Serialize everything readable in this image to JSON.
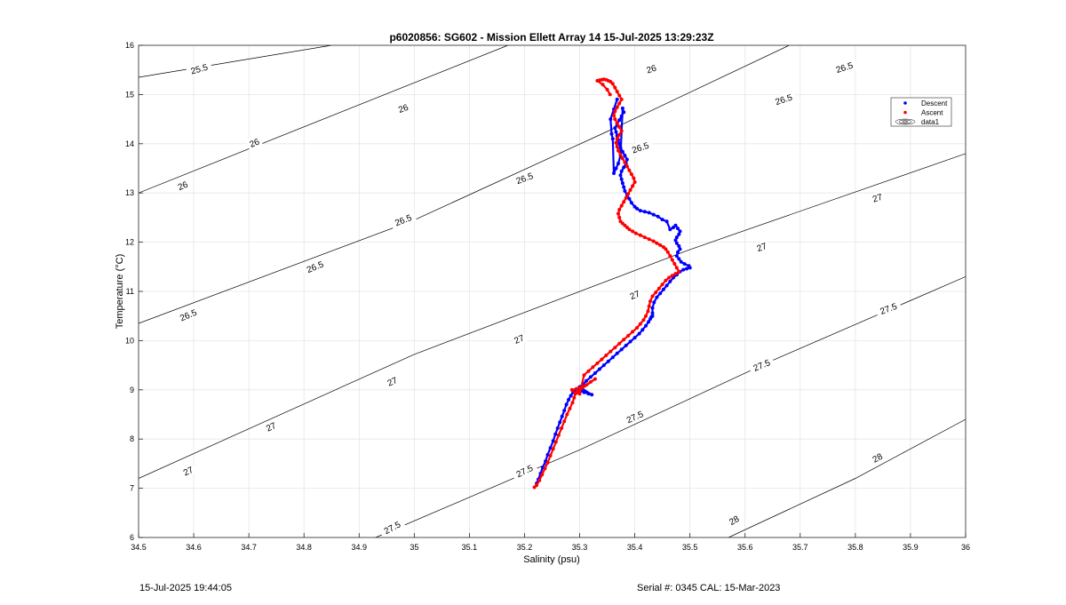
{
  "chart_data": {
    "type": "scatter",
    "title": "p6020856: SG602 - Mission Ellett Array 14 15-Jul-2025 13:29:23Z",
    "xlabel": "Salinity (psu)",
    "ylabel": "Temperature (°C)",
    "xlim": [
      34.5,
      36
    ],
    "ylim": [
      6,
      16
    ],
    "xticks": [
      "34.5",
      "34.6",
      "34.7",
      "34.8",
      "34.9",
      "35",
      "35.1",
      "35.2",
      "35.3",
      "35.4",
      "35.5",
      "35.6",
      "35.7",
      "35.8",
      "35.9",
      "36"
    ],
    "yticks": [
      "6",
      "7",
      "8",
      "9",
      "10",
      "11",
      "12",
      "13",
      "14",
      "15",
      "16"
    ],
    "grid": true,
    "legend_position": "top-right",
    "legend": [
      {
        "name": "Descent",
        "color": "#0000ff",
        "marker": "dot"
      },
      {
        "name": "Ascent",
        "color": "#ff0000",
        "marker": "dot"
      },
      {
        "name": "data1",
        "color": "#000000",
        "marker": "contour"
      }
    ],
    "series": [
      {
        "name": "Descent",
        "color": "#0000ff",
        "x": [
          35.222,
          35.225,
          35.229,
          35.233,
          35.238,
          35.242,
          35.247,
          35.252,
          35.256,
          35.26,
          35.264,
          35.268,
          35.272,
          35.276,
          35.28,
          35.284,
          35.288,
          35.292,
          35.296,
          35.3,
          35.303,
          35.308,
          35.316,
          35.322,
          35.3,
          35.306,
          35.312,
          35.32,
          35.328,
          35.336,
          35.344,
          35.352,
          35.36,
          35.368,
          35.376,
          35.384,
          35.392,
          35.4,
          35.408,
          35.414,
          35.42,
          35.425,
          35.428,
          35.43,
          35.432,
          35.432,
          35.432,
          35.435,
          35.44,
          35.446,
          35.452,
          35.458,
          35.464,
          35.47,
          35.476,
          35.482,
          35.488,
          35.494,
          35.5,
          35.498,
          35.49,
          35.484,
          35.48,
          35.476,
          35.478,
          35.482,
          35.48,
          35.476,
          35.474,
          35.476,
          35.48,
          35.482,
          35.478,
          35.474,
          35.47,
          35.464,
          35.458,
          35.45,
          35.442,
          35.434,
          35.426,
          35.418,
          35.41,
          35.404,
          35.4,
          35.394,
          35.39,
          35.386,
          35.382,
          35.38,
          35.378,
          35.376,
          35.374,
          35.376,
          35.38,
          35.384,
          35.386,
          35.382,
          35.378,
          35.374,
          35.372,
          35.37,
          35.368,
          35.366,
          35.364,
          35.368,
          35.372,
          35.376,
          35.38,
          35.378,
          35.374,
          35.37,
          35.366,
          35.362,
          35.36,
          35.358,
          35.356,
          35.362,
          35.368
        ],
        "y": [
          7.1,
          7.18,
          7.3,
          7.42,
          7.55,
          7.68,
          7.82,
          7.96,
          8.1,
          8.22,
          8.34,
          8.46,
          8.58,
          8.7,
          8.8,
          8.88,
          8.95,
          9.0,
          9.02,
          9.03,
          8.98,
          8.95,
          8.92,
          8.9,
          9.06,
          9.12,
          9.18,
          9.26,
          9.34,
          9.42,
          9.5,
          9.58,
          9.66,
          9.74,
          9.82,
          9.9,
          9.98,
          10.06,
          10.14,
          10.22,
          10.3,
          10.38,
          10.44,
          10.48,
          10.5,
          10.56,
          10.66,
          10.78,
          10.88,
          10.96,
          11.04,
          11.12,
          11.2,
          11.28,
          11.34,
          11.4,
          11.44,
          11.46,
          11.48,
          11.52,
          11.56,
          11.6,
          11.66,
          11.72,
          11.8,
          11.86,
          11.92,
          11.98,
          12.04,
          12.1,
          12.16,
          12.22,
          12.28,
          12.34,
          12.3,
          12.26,
          12.42,
          12.46,
          12.52,
          12.56,
          12.6,
          12.62,
          12.64,
          12.68,
          12.72,
          12.8,
          12.88,
          12.96,
          13.04,
          13.12,
          13.2,
          13.28,
          13.36,
          13.44,
          13.52,
          13.6,
          13.68,
          13.76,
          13.84,
          13.92,
          14.0,
          14.08,
          14.16,
          14.24,
          14.32,
          14.4,
          14.48,
          14.56,
          14.64,
          14.72,
          13.76,
          13.6,
          13.5,
          13.4,
          14.1,
          14.2,
          14.5,
          14.7,
          14.9
        ]
      },
      {
        "name": "Ascent",
        "color": "#ff0000",
        "x": [
          35.218,
          35.222,
          35.227,
          35.232,
          35.237,
          35.242,
          35.247,
          35.252,
          35.257,
          35.262,
          35.267,
          35.272,
          35.277,
          35.282,
          35.287,
          35.29,
          35.292,
          35.286,
          35.294,
          35.3,
          35.306,
          35.312,
          35.32,
          35.328,
          35.294,
          35.3,
          35.308,
          35.316,
          35.324,
          35.332,
          35.34,
          35.348,
          35.356,
          35.364,
          35.372,
          35.38,
          35.388,
          35.396,
          35.404,
          35.41,
          35.416,
          35.42,
          35.424,
          35.426,
          35.428,
          35.432,
          35.438,
          35.444,
          35.45,
          35.456,
          35.462,
          35.468,
          35.474,
          35.48,
          35.476,
          35.472,
          35.468,
          35.464,
          35.46,
          35.456,
          35.452,
          35.446,
          35.44,
          35.434,
          35.426,
          35.418,
          35.41,
          35.402,
          35.396,
          35.39,
          35.386,
          35.382,
          35.378,
          35.374,
          35.372,
          35.37,
          35.372,
          35.376,
          35.38,
          35.384,
          35.388,
          35.392,
          35.396,
          35.4,
          35.398,
          35.394,
          35.39,
          35.386,
          35.382,
          35.378,
          35.374,
          35.37,
          35.368,
          35.366,
          35.368,
          35.372,
          35.376,
          35.372,
          35.368,
          35.364,
          35.362,
          35.364,
          35.368,
          35.372,
          35.376,
          35.372,
          35.368,
          35.364,
          35.36,
          35.356,
          35.352,
          35.348,
          35.344,
          35.34,
          35.336,
          35.332,
          35.342,
          35.35,
          35.355
        ],
        "y": [
          7.02,
          7.06,
          7.16,
          7.28,
          7.4,
          7.52,
          7.66,
          7.8,
          7.94,
          8.08,
          8.22,
          8.36,
          8.5,
          8.62,
          8.74,
          8.84,
          8.92,
          9.0,
          9.02,
          9.04,
          9.06,
          9.1,
          9.16,
          9.22,
          8.94,
          8.92,
          9.3,
          9.38,
          9.46,
          9.54,
          9.62,
          9.7,
          9.78,
          9.86,
          9.94,
          10.02,
          10.1,
          10.18,
          10.26,
          10.34,
          10.42,
          10.5,
          10.6,
          10.7,
          10.8,
          10.9,
          10.98,
          11.06,
          11.14,
          11.22,
          11.28,
          11.32,
          11.36,
          11.4,
          11.48,
          11.56,
          11.64,
          11.72,
          11.8,
          11.86,
          11.9,
          11.94,
          11.98,
          12.02,
          12.06,
          12.1,
          12.14,
          12.18,
          12.22,
          12.26,
          12.3,
          12.34,
          12.38,
          12.42,
          12.5,
          12.58,
          12.66,
          12.74,
          12.82,
          12.9,
          12.98,
          13.06,
          13.14,
          13.22,
          13.3,
          13.38,
          13.46,
          13.54,
          13.62,
          13.7,
          13.78,
          13.86,
          13.94,
          14.02,
          14.1,
          14.18,
          14.26,
          14.34,
          14.42,
          14.5,
          14.58,
          14.66,
          14.74,
          14.82,
          14.9,
          14.98,
          15.06,
          15.14,
          15.22,
          15.26,
          15.28,
          15.3,
          15.31,
          15.3,
          15.29,
          15.28,
          15.2,
          15.1,
          15.0
        ]
      }
    ],
    "contour_labels": [
      "25.5",
      "26",
      "26",
      "26",
      "26",
      "26.5",
      "26.5",
      "26.5",
      "26.5",
      "26.5",
      "26.5",
      "26.5",
      "27",
      "27",
      "27",
      "27",
      "27",
      "27",
      "27",
      "27.5",
      "27.5",
      "27.5",
      "27.5",
      "27.5",
      "28",
      "28"
    ],
    "footer_left": "15-Jul-2025 19:44:05",
    "footer_right": "Serial #: 0345  CAL: 15-Mar-2023"
  }
}
